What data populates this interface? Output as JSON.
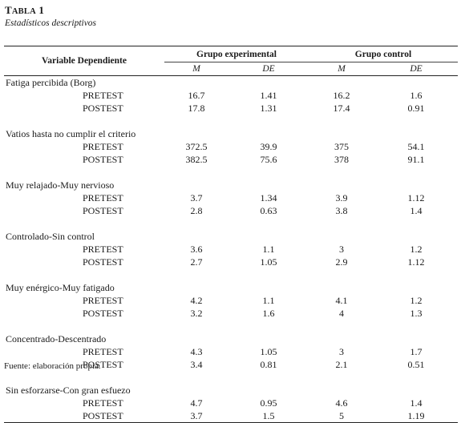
{
  "title_prefix": "T",
  "title_smallcaps": "ABLA",
  "title_number": "1",
  "subtitle": "Estadísticos descriptivos",
  "header": {
    "variable": "Variable Dependiente",
    "group_exp": "Grupo experimental",
    "group_ctrl": "Grupo control",
    "m": "M",
    "de": "DE"
  },
  "rows": [
    {
      "name": "Fatiga percibida (Borg)",
      "pre": {
        "label": "PRETEST",
        "em": "16.7",
        "ed": "1.41",
        "cm": "16.2",
        "cd": "1.6"
      },
      "post": {
        "label": "POSTEST",
        "em": "17.8",
        "ed": "1.31",
        "cm": "17.4",
        "cd": "0.91"
      }
    },
    {
      "name": "Vatios hasta no cumplir el criterio",
      "pre": {
        "label": "PRETEST",
        "em": "372.5",
        "ed": "39.9",
        "cm": "375",
        "cd": "54.1"
      },
      "post": {
        "label": "POSTEST",
        "em": "382.5",
        "ed": "75.6",
        "cm": "378",
        "cd": "91.1"
      }
    },
    {
      "name": "Muy relajado-Muy nervioso",
      "pre": {
        "label": "PRETEST",
        "em": "3.7",
        "ed": "1.34",
        "cm": "3.9",
        "cd": "1.12"
      },
      "post": {
        "label": "POSTEST",
        "em": "2.8",
        "ed": "0.63",
        "cm": "3.8",
        "cd": "1.4"
      }
    },
    {
      "name": "Controlado-Sin control",
      "pre": {
        "label": "PRETEST",
        "em": "3.6",
        "ed": "1.1",
        "cm": "3",
        "cd": "1.2"
      },
      "post": {
        "label": "POSTEST",
        "em": "2.7",
        "ed": "1.05",
        "cm": "2.9",
        "cd": "1.12"
      }
    },
    {
      "name": "Muy enérgico-Muy fatigado",
      "pre": {
        "label": "PRETEST",
        "em": "4.2",
        "ed": "1.1",
        "cm": "4.1",
        "cd": "1.2"
      },
      "post": {
        "label": "POSTEST",
        "em": "3.2",
        "ed": "1.6",
        "cm": "4",
        "cd": "1.3"
      }
    },
    {
      "name": "Concentrado-Descentrado",
      "pre": {
        "label": "PRETEST",
        "em": "4.3",
        "ed": "1.05",
        "cm": "3",
        "cd": "1.7"
      },
      "post": {
        "label": "POSTEST",
        "em": "3.4",
        "ed": "0.81",
        "cm": "2.1",
        "cd": "0.51"
      }
    },
    {
      "name": "Sin esforzarse-Con gran esfuezo",
      "pre": {
        "label": "PRETEST",
        "em": "4.7",
        "ed": "0.95",
        "cm": "4.6",
        "cd": "1.4"
      },
      "post": {
        "label": "POSTEST",
        "em": "3.7",
        "ed": "1.5",
        "cm": "5",
        "cd": "1.19"
      }
    }
  ],
  "source": "Fuente: elaboración propia."
}
